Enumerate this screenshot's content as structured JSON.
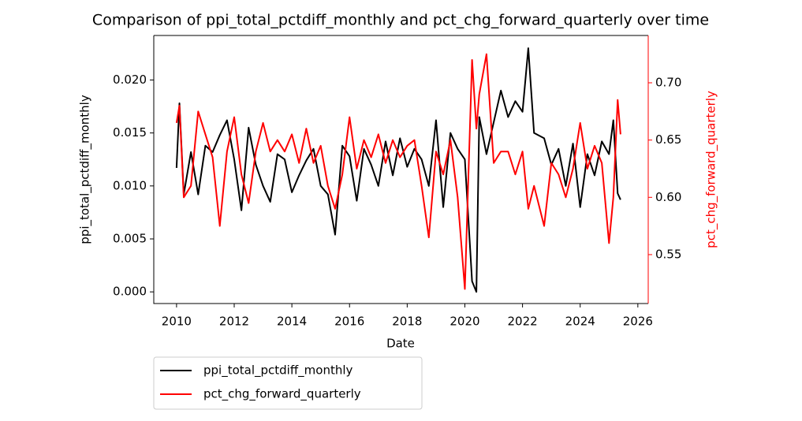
{
  "chart_data": {
    "type": "line",
    "title": "Comparison of ppi_total_pctdiff_monthly and pct_chg_forward_quarterly over time",
    "x_label": "Date",
    "y_label": "ppi_total_pctdiff_monthly",
    "y2_label": "pct_chg_forward_quarterly",
    "x": [
      2010.0,
      2010.1,
      2010.25,
      2010.5,
      2010.75,
      2011.0,
      2011.25,
      2011.5,
      2011.75,
      2012.0,
      2012.25,
      2012.5,
      2012.75,
      2013.0,
      2013.25,
      2013.5,
      2013.75,
      2014.0,
      2014.25,
      2014.5,
      2014.75,
      2015.0,
      2015.25,
      2015.5,
      2015.75,
      2016.0,
      2016.25,
      2016.5,
      2016.75,
      2017.0,
      2017.25,
      2017.5,
      2017.75,
      2018.0,
      2018.25,
      2018.5,
      2018.75,
      2019.0,
      2019.25,
      2019.5,
      2019.75,
      2020.0,
      2020.25,
      2020.4,
      2020.5,
      2020.75,
      2021.0,
      2021.25,
      2021.5,
      2021.75,
      2022.0,
      2022.2,
      2022.4,
      2022.75,
      2023.0,
      2023.25,
      2023.5,
      2023.75,
      2024.0,
      2024.25,
      2024.5,
      2024.75,
      2025.0,
      2025.15,
      2025.3,
      2025.4
    ],
    "series": [
      {
        "name": "ppi_total_pctdiff_monthly",
        "color": "#000000",
        "axis": "y",
        "values": [
          0.0117,
          0.0178,
          0.0092,
          0.0132,
          0.0092,
          0.0138,
          0.0132,
          0.0148,
          0.0162,
          0.0125,
          0.0077,
          0.0155,
          0.012,
          0.01,
          0.0085,
          0.013,
          0.0125,
          0.0094,
          0.011,
          0.0124,
          0.0135,
          0.01,
          0.0092,
          0.0054,
          0.0138,
          0.0128,
          0.0086,
          0.0135,
          0.012,
          0.01,
          0.0142,
          0.011,
          0.0145,
          0.0118,
          0.0135,
          0.0125,
          0.01,
          0.0162,
          0.008,
          0.015,
          0.0135,
          0.0125,
          0.001,
          0.0,
          0.0165,
          0.013,
          0.016,
          0.019,
          0.0165,
          0.018,
          0.017,
          0.023,
          0.015,
          0.0145,
          0.012,
          0.0135,
          0.01,
          0.014,
          0.008,
          0.013,
          0.011,
          0.0142,
          0.013,
          0.0162,
          0.0093,
          0.0087
        ]
      },
      {
        "name": "pct_chg_forward_quarterly",
        "color": "#ff0000",
        "axis": "y2",
        "values": [
          0.665,
          0.68,
          0.6,
          0.61,
          0.675,
          0.655,
          0.635,
          0.575,
          0.64,
          0.67,
          0.62,
          0.595,
          0.64,
          0.665,
          0.64,
          0.65,
          0.64,
          0.655,
          0.63,
          0.66,
          0.63,
          0.645,
          0.61,
          0.59,
          0.62,
          0.67,
          0.625,
          0.65,
          0.635,
          0.655,
          0.63,
          0.65,
          0.635,
          0.645,
          0.65,
          0.61,
          0.565,
          0.64,
          0.62,
          0.65,
          0.6,
          0.52,
          0.72,
          0.66,
          0.69,
          0.725,
          0.63,
          0.64,
          0.64,
          0.62,
          0.64,
          0.59,
          0.61,
          0.575,
          0.63,
          0.62,
          0.6,
          0.625,
          0.665,
          0.625,
          0.645,
          0.63,
          0.56,
          0.6,
          0.685,
          0.655
        ]
      }
    ],
    "xlim": [
      2009.21,
      2026.36
    ],
    "xticks": [
      2010,
      2012,
      2014,
      2016,
      2018,
      2020,
      2022,
      2024,
      2026
    ],
    "ylim": [
      -0.0011,
      0.0242
    ],
    "yticks": [
      {
        "value": 0,
        "label": "0.000"
      },
      {
        "value": 0.005,
        "label": "0.005"
      },
      {
        "value": 0.01,
        "label": "0.010"
      },
      {
        "value": 0.015,
        "label": "0.015"
      },
      {
        "value": 0.02,
        "label": "0.020"
      }
    ],
    "y2lim": [
      0.5073,
      0.7413
    ],
    "y2ticks": [
      {
        "value": 0.55,
        "label": "0.55"
      },
      {
        "value": 0.6,
        "label": "0.60"
      },
      {
        "value": 0.65,
        "label": "0.65"
      },
      {
        "value": 0.7,
        "label": "0.70"
      }
    ],
    "y2_color": "#ff0000",
    "legend": "below-left"
  }
}
